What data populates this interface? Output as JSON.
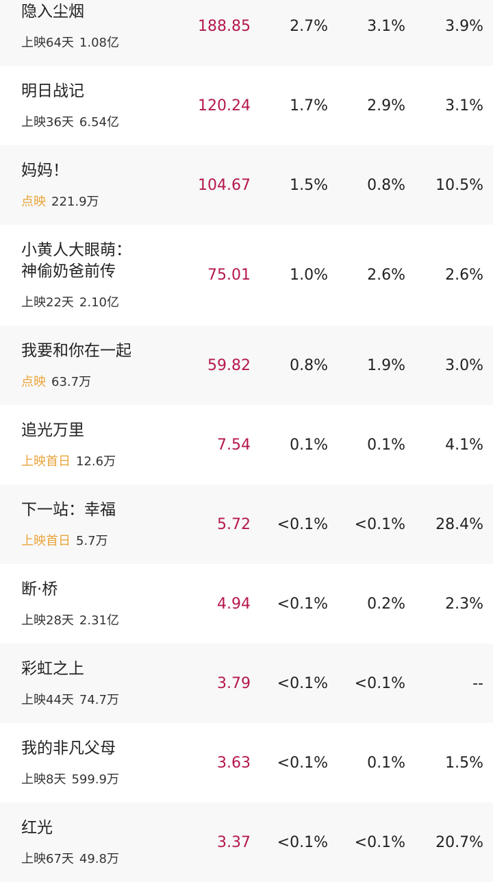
{
  "accent_color": "#b5174f",
  "highlight_status_color": "#e9a43a",
  "rows": [
    {
      "name": "隐入尘烟",
      "status": "上映64天",
      "highlight": false,
      "total": "1.08亿",
      "value": "188.85",
      "p1": "2.7%",
      "p2": "3.1%",
      "p3": "3.9%"
    },
    {
      "name": "明日战记",
      "status": "上映36天",
      "highlight": false,
      "total": "6.54亿",
      "value": "120.24",
      "p1": "1.7%",
      "p2": "2.9%",
      "p3": "3.1%"
    },
    {
      "name": "妈妈！",
      "status": "点映",
      "highlight": true,
      "total": "221.9万",
      "value": "104.67",
      "p1": "1.5%",
      "p2": "0.8%",
      "p3": "10.5%"
    },
    {
      "name": "小黄人大眼萌：\n神偷奶爸前传",
      "status": "上映22天",
      "highlight": false,
      "total": "2.10亿",
      "value": "75.01",
      "p1": "1.0%",
      "p2": "2.6%",
      "p3": "2.6%"
    },
    {
      "name": "我要和你在一起",
      "status": "点映",
      "highlight": true,
      "total": "63.7万",
      "value": "59.82",
      "p1": "0.8%",
      "p2": "1.9%",
      "p3": "3.0%"
    },
    {
      "name": "追光万里",
      "status": "上映首日",
      "highlight": true,
      "total": "12.6万",
      "value": "7.54",
      "p1": "0.1%",
      "p2": "0.1%",
      "p3": "4.1%"
    },
    {
      "name": "下一站：幸福",
      "status": "上映首日",
      "highlight": true,
      "total": "5.7万",
      "value": "5.72",
      "p1": "<0.1%",
      "p2": "<0.1%",
      "p3": "28.4%"
    },
    {
      "name": "断·桥",
      "status": "上映28天",
      "highlight": false,
      "total": "2.31亿",
      "value": "4.94",
      "p1": "<0.1%",
      "p2": "0.2%",
      "p3": "2.3%"
    },
    {
      "name": "彩虹之上",
      "status": "上映44天",
      "highlight": false,
      "total": "74.7万",
      "value": "3.79",
      "p1": "<0.1%",
      "p2": "<0.1%",
      "p3": "--"
    },
    {
      "name": "我的非凡父母",
      "status": "上映8天",
      "highlight": false,
      "total": "599.9万",
      "value": "3.63",
      "p1": "<0.1%",
      "p2": "0.1%",
      "p3": "1.5%"
    },
    {
      "name": "红光",
      "status": "上映67天",
      "highlight": false,
      "total": "49.8万",
      "value": "3.37",
      "p1": "<0.1%",
      "p2": "<0.1%",
      "p3": "20.7%"
    }
  ]
}
